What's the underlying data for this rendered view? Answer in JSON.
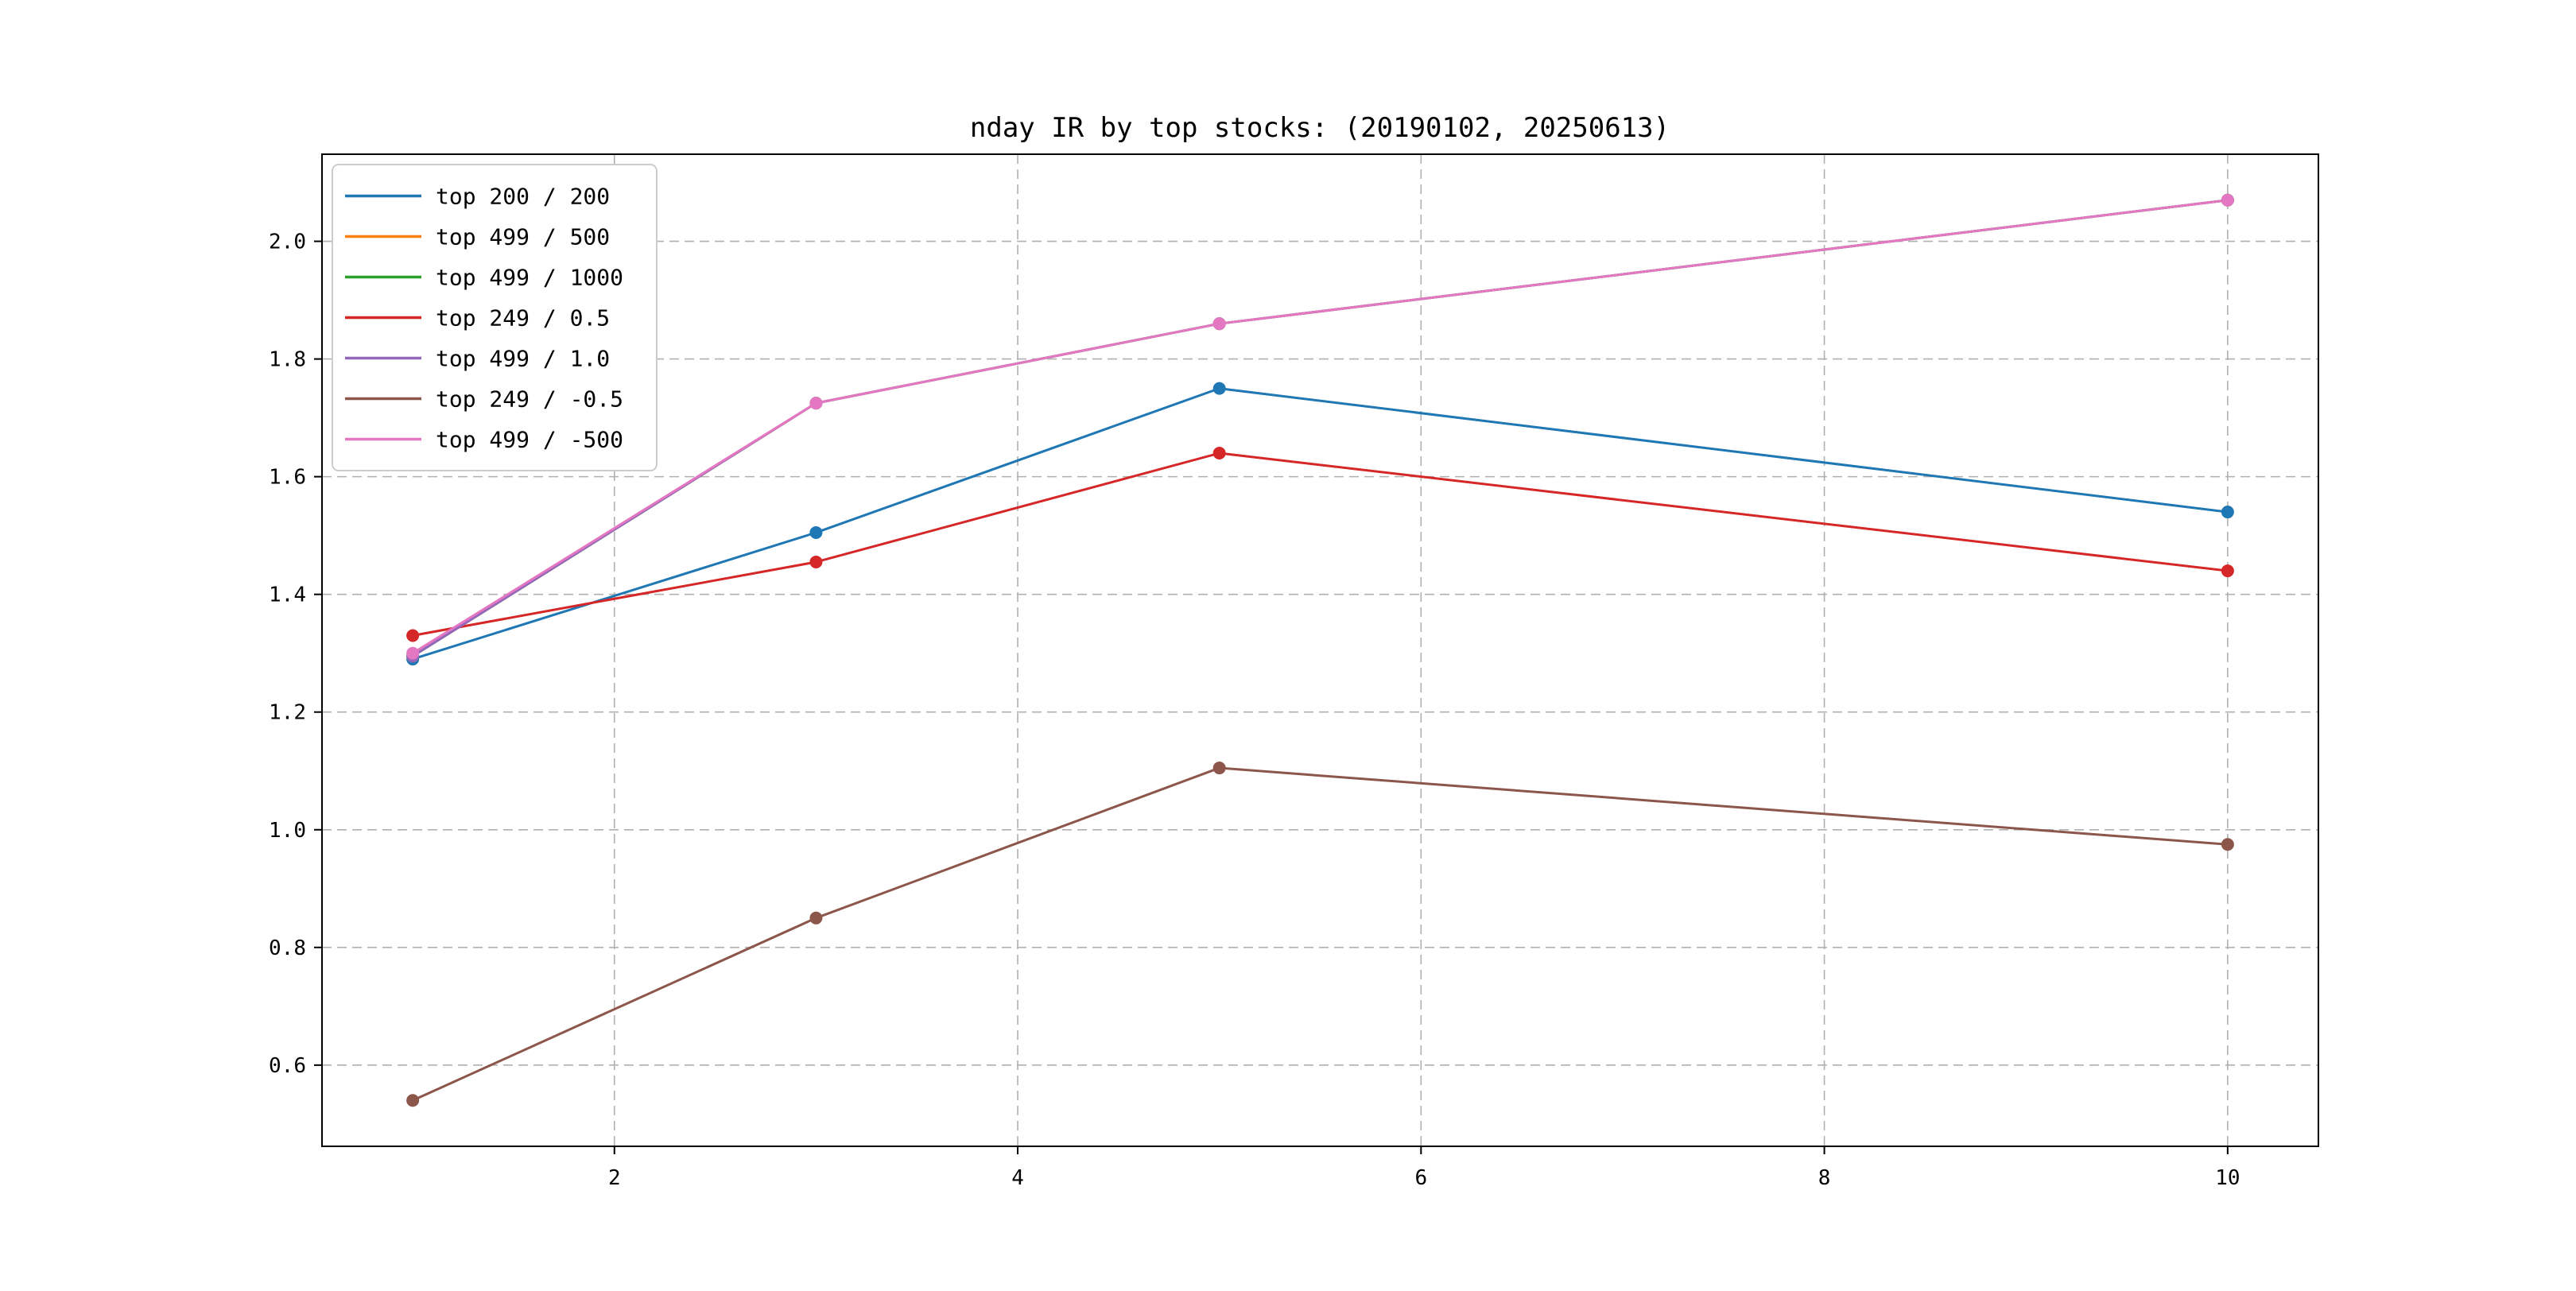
{
  "figure": {
    "background": "#ffffff"
  },
  "chart_data": {
    "type": "line",
    "title": "nday IR by top stocks: (20190102, 20250613)",
    "x": [
      1,
      3,
      5,
      10
    ],
    "series": [
      {
        "name": "top 200 / 200",
        "color": "#1f77b4",
        "values": [
          1.29,
          1.505,
          1.75,
          1.54
        ]
      },
      {
        "name": "top 499 / 500",
        "color": "#ff7f0e",
        "values": [
          1.295,
          1.725,
          1.86,
          2.07
        ]
      },
      {
        "name": "top 499 / 1000",
        "color": "#2ca02c",
        "values": [
          1.295,
          1.725,
          1.86,
          2.07
        ]
      },
      {
        "name": "top 249 / 0.5",
        "color": "#d62728",
        "values": [
          1.33,
          1.455,
          1.64,
          1.44
        ]
      },
      {
        "name": "top 499 / 1.0",
        "color": "#9467bd",
        "values": [
          1.295,
          1.725,
          1.86,
          2.07
        ]
      },
      {
        "name": "top 249 / -0.5",
        "color": "#8c564b",
        "values": [
          0.54,
          0.85,
          1.105,
          0.975
        ]
      },
      {
        "name": "top 499 / -500",
        "color": "#e377c2",
        "values": [
          1.3,
          1.725,
          1.86,
          2.07
        ]
      }
    ],
    "xticks": [
      "2",
      "4",
      "6",
      "8",
      "10"
    ],
    "xtick_values": [
      2,
      4,
      6,
      8,
      10
    ],
    "yticks": [
      "0.6",
      "0.8",
      "1.0",
      "1.2",
      "1.4",
      "1.6",
      "1.8",
      "2.0"
    ],
    "ytick_values": [
      0.6,
      0.8,
      1.0,
      1.2,
      1.4,
      1.6,
      1.8,
      2.0
    ],
    "xlim": [
      0.55,
      10.45
    ],
    "ylim": [
      0.462,
      2.148
    ],
    "xlabel": "",
    "ylabel": "",
    "grid": true,
    "grid_style": "dashed",
    "legend_position": "upper-left",
    "marker": "circle"
  },
  "colors": {
    "grid": "#b0b0b0",
    "spine": "#000000",
    "tick": "#000000",
    "legend_border": "#cccccc",
    "legend_background": "#ffffff",
    "background": "#ffffff",
    "text": "#000000"
  }
}
